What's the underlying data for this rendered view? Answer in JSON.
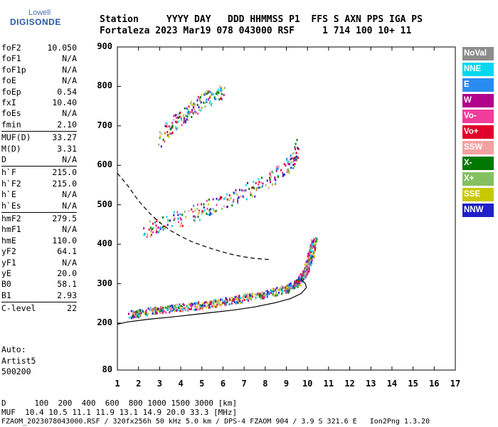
{
  "logo": {
    "top": "Lowell",
    "main": "DIGISONDE"
  },
  "header": {
    "line1": "Station     YYYY DAY   DDD HHMMSS P1  FFS S AXN PPS IGA PS",
    "line2": "Fortaleza 2023 Mar19 078 043000 RSF     1 714 100 10+ 11"
  },
  "params": [
    {
      "k": "foF2",
      "v": "10.050"
    },
    {
      "k": "foF1",
      "v": "N/A"
    },
    {
      "k": "foF1p",
      "v": "N/A"
    },
    {
      "k": "foE",
      "v": "N/A"
    },
    {
      "k": "foEp",
      "v": "0.54"
    },
    {
      "k": "fxI",
      "v": "10.40"
    },
    {
      "k": "foEs",
      "v": "N/A"
    },
    {
      "k": "fmin",
      "v": "2.10"
    },
    {
      "k": "MUF(D)",
      "v": "33.27"
    },
    {
      "k": "M(D)",
      "v": "3.31"
    },
    {
      "k": "D",
      "v": "N/A"
    },
    {
      "k": "h`F",
      "v": "215.0"
    },
    {
      "k": "h`F2",
      "v": "215.0"
    },
    {
      "k": "h`E",
      "v": "N/A"
    },
    {
      "k": "h`Es",
      "v": "N/A"
    },
    {
      "k": "hmF2",
      "v": "279.5"
    },
    {
      "k": "hmF1",
      "v": "N/A"
    },
    {
      "k": "hmE",
      "v": "110.0"
    },
    {
      "k": "yF2",
      "v": "64.1"
    },
    {
      "k": "yF1",
      "v": "N/A"
    },
    {
      "k": "yE",
      "v": "20.0"
    },
    {
      "k": "B0",
      "v": "58.1"
    },
    {
      "k": "B1",
      "v": "2.93"
    },
    {
      "k": "C-level",
      "v": "22"
    }
  ],
  "auto": {
    "label": "Auto:",
    "name": "Artist5",
    "code": "500200"
  },
  "legend": [
    {
      "label": "NoVal",
      "color": "#8c8c8c"
    },
    {
      "label": "NNE",
      "color": "#00d8f0"
    },
    {
      "label": "E",
      "color": "#2a8cf0"
    },
    {
      "label": "W",
      "color": "#b0008c"
    },
    {
      "label": "Vo-",
      "color": "#f03c9c"
    },
    {
      "label": "Vo+",
      "color": "#e0002a"
    },
    {
      "label": "SSW",
      "color": "#f4a0a0"
    },
    {
      "label": "X-",
      "color": "#007800"
    },
    {
      "label": "X+",
      "color": "#84c060"
    },
    {
      "label": "SSE",
      "color": "#c8c800"
    },
    {
      "label": "NNW",
      "color": "#2020c8"
    }
  ],
  "footer": {
    "line1": "D      100  200  400  600  800 1000 1500 3000 [km]",
    "line2": "MUF  10.4 10.5 11.1 11.9 13.1 14.9 20.0 33.3 [MHz]",
    "line3": "FZAOM_2023078043000.RSF / 320fx256h 50 kHz 5.0 km / DPS-4 FZAOM 904 / 3.9 S 321.6 E   Ion2Png 1.3.20"
  },
  "chart_data": {
    "type": "scatter",
    "title": "",
    "xlabel": "",
    "ylabel": "",
    "xlim": [
      1,
      17
    ],
    "ylim": [
      80,
      900
    ],
    "x_ticks": [
      "1",
      "2",
      "3",
      "4",
      "5",
      "6",
      "7",
      "8",
      "9",
      "10",
      "11",
      "12",
      "13",
      "14",
      "15",
      "16",
      "17"
    ],
    "y_ticks": [
      "80",
      "200",
      "300",
      "400",
      "500",
      "600",
      "700",
      "800",
      "900"
    ],
    "curves": [
      {
        "name": "",
        "style": "solid",
        "points": [
          [
            1.0,
            197
          ],
          [
            1.5,
            203
          ],
          [
            2.5,
            210
          ],
          [
            3.5,
            215
          ],
          [
            4.5,
            221
          ],
          [
            5.5,
            227
          ],
          [
            6.5,
            233
          ],
          [
            7.5,
            241
          ],
          [
            8.5,
            252
          ],
          [
            9.2,
            262
          ],
          [
            9.7,
            275
          ],
          [
            9.95,
            290
          ],
          [
            9.9,
            300
          ],
          [
            9.7,
            312
          ]
        ]
      },
      {
        "name": "",
        "style": "dashed",
        "points": [
          [
            1.0,
            580
          ],
          [
            1.5,
            548
          ],
          [
            2.0,
            510
          ],
          [
            2.5,
            480
          ],
          [
            3.0,
            455
          ],
          [
            3.5,
            435
          ],
          [
            4.0,
            420
          ],
          [
            4.5,
            407
          ],
          [
            5.0,
            397
          ],
          [
            5.5,
            388
          ],
          [
            6.0,
            380
          ],
          [
            6.5,
            373
          ],
          [
            7.0,
            368
          ],
          [
            7.5,
            364
          ],
          [
            8.0,
            362
          ],
          [
            8.3,
            361
          ]
        ]
      }
    ],
    "echo_traces": [
      {
        "name": "F trace",
        "points": [
          [
            1.6,
            220
          ],
          [
            2.0,
            224
          ],
          [
            3.0,
            232
          ],
          [
            4.0,
            238
          ],
          [
            5.0,
            244
          ],
          [
            6.0,
            252
          ],
          [
            7.0,
            262
          ],
          [
            8.0,
            272
          ],
          [
            9.0,
            285
          ],
          [
            9.5,
            300
          ],
          [
            9.8,
            320
          ],
          [
            10.0,
            345
          ],
          [
            10.2,
            380
          ],
          [
            10.3,
            410
          ]
        ]
      },
      {
        "name": "2F trace",
        "points": [
          [
            2.2,
            430
          ],
          [
            3.0,
            445
          ],
          [
            4.0,
            460
          ],
          [
            5.0,
            480
          ],
          [
            6.0,
            500
          ],
          [
            7.0,
            525
          ],
          [
            8.0,
            550
          ],
          [
            8.8,
            580
          ],
          [
            9.3,
            610
          ],
          [
            9.6,
            640
          ]
        ]
      },
      {
        "name": "3F trace",
        "points": [
          [
            3.0,
            660
          ],
          [
            3.5,
            690
          ],
          [
            4.0,
            715
          ],
          [
            4.5,
            735
          ],
          [
            5.0,
            755
          ],
          [
            5.5,
            770
          ],
          [
            6.0,
            785
          ]
        ]
      }
    ]
  }
}
